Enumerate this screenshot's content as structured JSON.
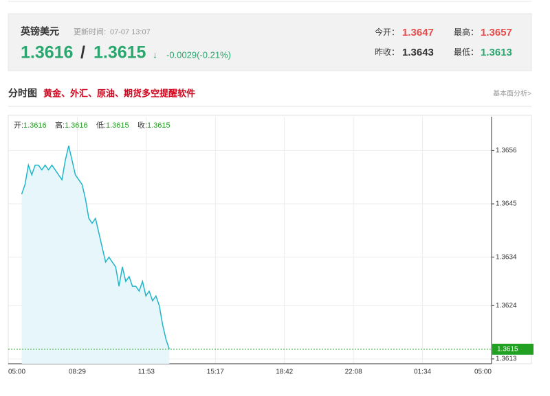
{
  "header": {
    "pair": "英镑美元",
    "update_label": "更新时间:",
    "update_time": "07-07 13:07",
    "bid": "1.3616",
    "sep": "/",
    "ask": "1.3615",
    "arrow": "↓",
    "change": "-0.0029(-0.21%)",
    "open_label": "今开：",
    "open": "1.3647",
    "high_label": "最高：",
    "high": "1.3657",
    "prev_label": "昨收：",
    "prev": "1.3643",
    "low_label": "最低：",
    "low": "1.3613"
  },
  "section": {
    "title": "分时图",
    "promo": "黄金、外汇、原油、期货多空提醒软件",
    "link": "基本面分析>"
  },
  "chart_data": {
    "type": "line",
    "ohlc": [
      {
        "label": "开:",
        "value": "1.3616"
      },
      {
        "label": "高:",
        "value": "1.3616"
      },
      {
        "label": "低:",
        "value": "1.3615"
      },
      {
        "label": "收:",
        "value": "1.3615"
      }
    ],
    "xticks": [
      "05:00",
      "08:29",
      "11:53",
      "15:17",
      "18:42",
      "22:08",
      "01:34",
      "05:00"
    ],
    "x": [
      "05:40",
      "05:50",
      "06:00",
      "06:10",
      "06:20",
      "06:30",
      "06:40",
      "06:50",
      "07:00",
      "07:10",
      "07:20",
      "07:30",
      "07:40",
      "07:50",
      "08:00",
      "08:10",
      "08:20",
      "08:30",
      "08:40",
      "08:50",
      "09:00",
      "09:10",
      "09:20",
      "09:30",
      "09:40",
      "09:50",
      "10:00",
      "10:10",
      "10:20",
      "10:30",
      "10:40",
      "10:50",
      "11:00",
      "11:10",
      "11:20",
      "11:30",
      "11:40",
      "11:50",
      "12:00",
      "12:10",
      "12:20",
      "12:30",
      "12:40",
      "12:50",
      "13:00"
    ],
    "series": [
      {
        "color": "#1fb5c9",
        "fill": "#e6f6fa",
        "values": [
          1.3647,
          1.3649,
          1.3653,
          1.3651,
          1.3653,
          1.3653,
          1.3652,
          1.3653,
          1.3652,
          1.3653,
          1.3652,
          1.3651,
          1.365,
          1.3654,
          1.3657,
          1.3654,
          1.3651,
          1.365,
          1.3649,
          1.3646,
          1.3642,
          1.3641,
          1.3642,
          1.3639,
          1.3636,
          1.3633,
          1.3634,
          1.3633,
          1.3632,
          1.3628,
          1.3632,
          1.3629,
          1.363,
          1.3628,
          1.3628,
          1.3627,
          1.3629,
          1.3626,
          1.3627,
          1.3625,
          1.3626,
          1.3624,
          1.362,
          1.3617,
          1.3615
        ]
      }
    ],
    "last_price": 1.3615,
    "last_color": "#22a022",
    "ylim": [
      1.3612,
      1.3663
    ],
    "yticks": [
      1.3656,
      1.3645,
      1.3634,
      1.3624,
      1.3613
    ],
    "grid": true
  }
}
